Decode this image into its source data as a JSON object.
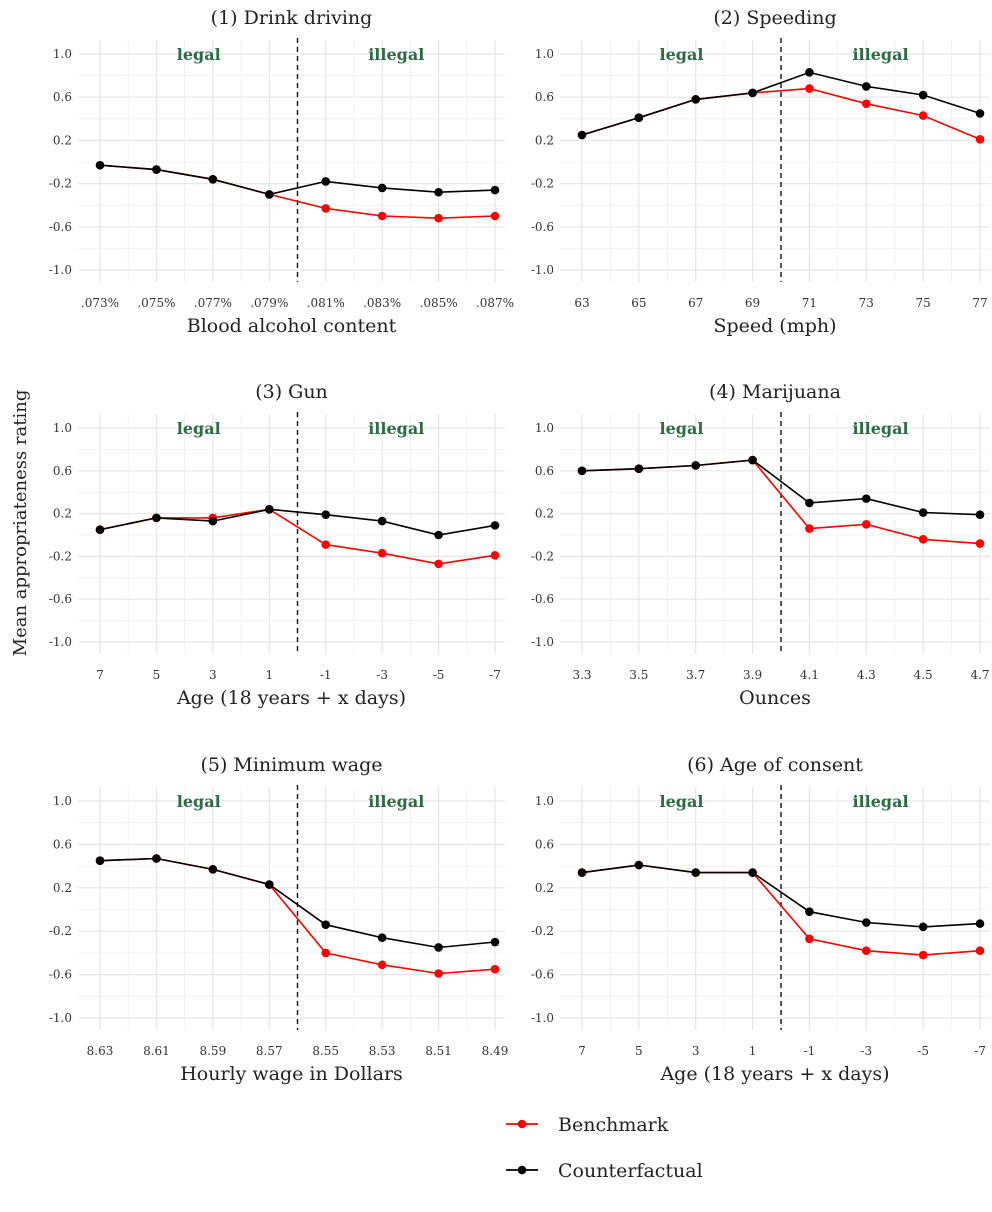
{
  "figure": {
    "ylabel": "Mean appropriateness rating",
    "legend": {
      "placement": "bottom-center"
    }
  },
  "chart_data": [
    {
      "type": "line",
      "title": "(1) Drink driving",
      "xlabel": "Blood alcohol content",
      "categories": [
        ".073%",
        ".075%",
        ".077%",
        ".079%",
        ".081%",
        ".083%",
        ".085%",
        ".087%"
      ],
      "threshold_after_index": 3,
      "zones": [
        "legal",
        "illegal"
      ],
      "ylim": [
        -1.0,
        1.0
      ],
      "yticks": [
        "1.0",
        "0.6",
        "0.2",
        "-0.2",
        "-0.6",
        "-1.0"
      ],
      "grid": true,
      "series": [
        {
          "name": "Benchmark",
          "color": "#ff0000",
          "values": [
            -0.03,
            -0.07,
            -0.16,
            -0.3,
            -0.43,
            -0.5,
            -0.52,
            -0.5
          ]
        },
        {
          "name": "Counterfactual",
          "color": "#000000",
          "values": [
            -0.03,
            -0.07,
            -0.16,
            -0.3,
            -0.18,
            -0.24,
            -0.28,
            -0.26
          ]
        }
      ]
    },
    {
      "type": "line",
      "title": "(2) Speeding",
      "xlabel": "Speed (mph)",
      "categories": [
        "63",
        "65",
        "67",
        "69",
        "71",
        "73",
        "75",
        "77"
      ],
      "threshold_after_index": 3,
      "zones": [
        "legal",
        "illegal"
      ],
      "ylim": [
        -1.0,
        1.0
      ],
      "yticks": [
        "1.0",
        "0.6",
        "0.2",
        "-0.2",
        "-0.6",
        "-1.0"
      ],
      "grid": true,
      "series": [
        {
          "name": "Benchmark",
          "color": "#ff0000",
          "values": [
            0.25,
            0.41,
            0.58,
            0.64,
            0.68,
            0.54,
            0.43,
            0.21
          ]
        },
        {
          "name": "Counterfactual",
          "color": "#000000",
          "values": [
            0.25,
            0.41,
            0.58,
            0.64,
            0.83,
            0.7,
            0.62,
            0.45
          ]
        }
      ]
    },
    {
      "type": "line",
      "title": "(3) Gun",
      "xlabel": "Age (18 years + x days)",
      "categories": [
        "7",
        "5",
        "3",
        "1",
        "-1",
        "-3",
        "-5",
        "-7"
      ],
      "threshold_after_index": 3,
      "zones": [
        "legal",
        "illegal"
      ],
      "ylim": [
        -1.0,
        1.0
      ],
      "yticks": [
        "1.0",
        "0.6",
        "0.2",
        "-0.2",
        "-0.6",
        "-1.0"
      ],
      "grid": true,
      "series": [
        {
          "name": "Benchmark",
          "color": "#ff0000",
          "values": [
            0.05,
            0.16,
            0.16,
            0.24,
            -0.09,
            -0.17,
            -0.27,
            -0.19
          ]
        },
        {
          "name": "Counterfactual",
          "color": "#000000",
          "values": [
            0.05,
            0.16,
            0.13,
            0.24,
            0.19,
            0.13,
            0.0,
            0.09
          ]
        }
      ]
    },
    {
      "type": "line",
      "title": "(4) Marijuana",
      "xlabel": "Ounces",
      "categories": [
        "3.3",
        "3.5",
        "3.7",
        "3.9",
        "4.1",
        "4.3",
        "4.5",
        "4.7"
      ],
      "threshold_after_index": 3,
      "zones": [
        "legal",
        "illegal"
      ],
      "ylim": [
        -1.0,
        1.0
      ],
      "yticks": [
        "1.0",
        "0.6",
        "0.2",
        "-0.2",
        "-0.6",
        "-1.0"
      ],
      "grid": true,
      "series": [
        {
          "name": "Benchmark",
          "color": "#ff0000",
          "values": [
            0.6,
            0.62,
            0.65,
            0.7,
            0.06,
            0.1,
            -0.04,
            -0.08
          ]
        },
        {
          "name": "Counterfactual",
          "color": "#000000",
          "values": [
            0.6,
            0.62,
            0.65,
            0.7,
            0.3,
            0.34,
            0.21,
            0.19
          ]
        }
      ]
    },
    {
      "type": "line",
      "title": "(5) Minimum wage",
      "xlabel": "Hourly wage in Dollars",
      "categories": [
        "8.63",
        "8.61",
        "8.59",
        "8.57",
        "8.55",
        "8.53",
        "8.51",
        "8.49"
      ],
      "threshold_after_index": 3,
      "zones": [
        "legal",
        "illegal"
      ],
      "ylim": [
        -1.0,
        1.0
      ],
      "yticks": [
        "1.0",
        "0.6",
        "0.2",
        "-0.2",
        "-0.6",
        "-1.0"
      ],
      "grid": true,
      "series": [
        {
          "name": "Benchmark",
          "color": "#ff0000",
          "values": [
            0.45,
            0.47,
            0.37,
            0.23,
            -0.4,
            -0.51,
            -0.59,
            -0.55
          ]
        },
        {
          "name": "Counterfactual",
          "color": "#000000",
          "values": [
            0.45,
            0.47,
            0.37,
            0.23,
            -0.14,
            -0.26,
            -0.35,
            -0.3
          ]
        }
      ]
    },
    {
      "type": "line",
      "title": "(6) Age of consent",
      "xlabel": "Age (18 years + x days)",
      "categories": [
        "7",
        "5",
        "3",
        "1",
        "-1",
        "-3",
        "-5",
        "-7"
      ],
      "threshold_after_index": 3,
      "zones": [
        "legal",
        "illegal"
      ],
      "ylim": [
        -1.0,
        1.0
      ],
      "yticks": [
        "1.0",
        "0.6",
        "0.2",
        "-0.2",
        "-0.6",
        "-1.0"
      ],
      "grid": true,
      "series": [
        {
          "name": "Benchmark",
          "color": "#ff0000",
          "values": [
            0.34,
            0.41,
            0.34,
            0.34,
            -0.27,
            -0.38,
            -0.42,
            -0.38
          ]
        },
        {
          "name": "Counterfactual",
          "color": "#000000",
          "values": [
            0.34,
            0.41,
            0.34,
            0.34,
            -0.02,
            -0.12,
            -0.16,
            -0.13
          ]
        }
      ]
    }
  ]
}
